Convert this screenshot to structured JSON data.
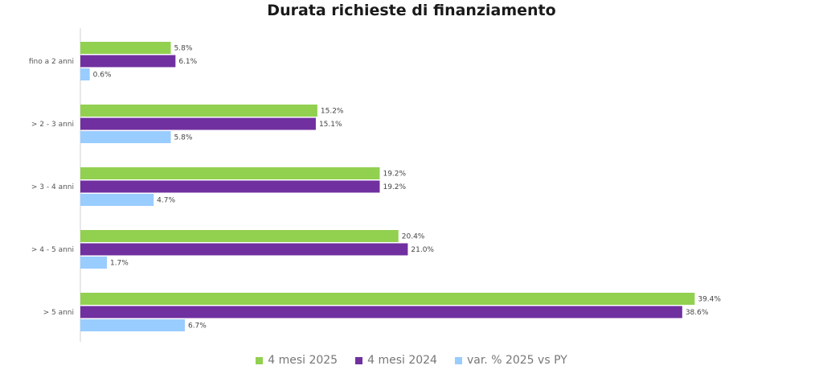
{
  "chart_data": {
    "type": "bar",
    "orientation": "horizontal",
    "title": "Durata richieste di finanziamento",
    "categories": [
      "fino a 2 anni",
      "> 2 - 3 anni",
      "> 3 - 4 anni",
      "> 4 - 5 anni",
      "> 5 anni"
    ],
    "series": [
      {
        "name": "4 mesi 2025",
        "color": "#92d050",
        "values": [
          5.8,
          15.2,
          19.2,
          20.4,
          39.4
        ],
        "labels": [
          "5.8%",
          "15.2%",
          "19.2%",
          "20.4%",
          "39.4%"
        ]
      },
      {
        "name": "4 mesi 2024",
        "color": "#7030a0",
        "values": [
          6.1,
          15.1,
          19.2,
          21.0,
          38.6
        ],
        "labels": [
          "6.1%",
          "15.1%",
          "19.2%",
          "21.0%",
          "38.6%"
        ]
      },
      {
        "name": "var. % 2025 vs PY",
        "color": "#99ccff",
        "values": [
          0.6,
          5.8,
          4.7,
          1.7,
          6.7
        ],
        "labels": [
          "0.6%",
          "5.8%",
          "4.7%",
          "1.7%",
          "6.7%"
        ]
      }
    ],
    "xlim": [
      0,
      40
    ],
    "grid": false,
    "legend_position": "bottom"
  }
}
